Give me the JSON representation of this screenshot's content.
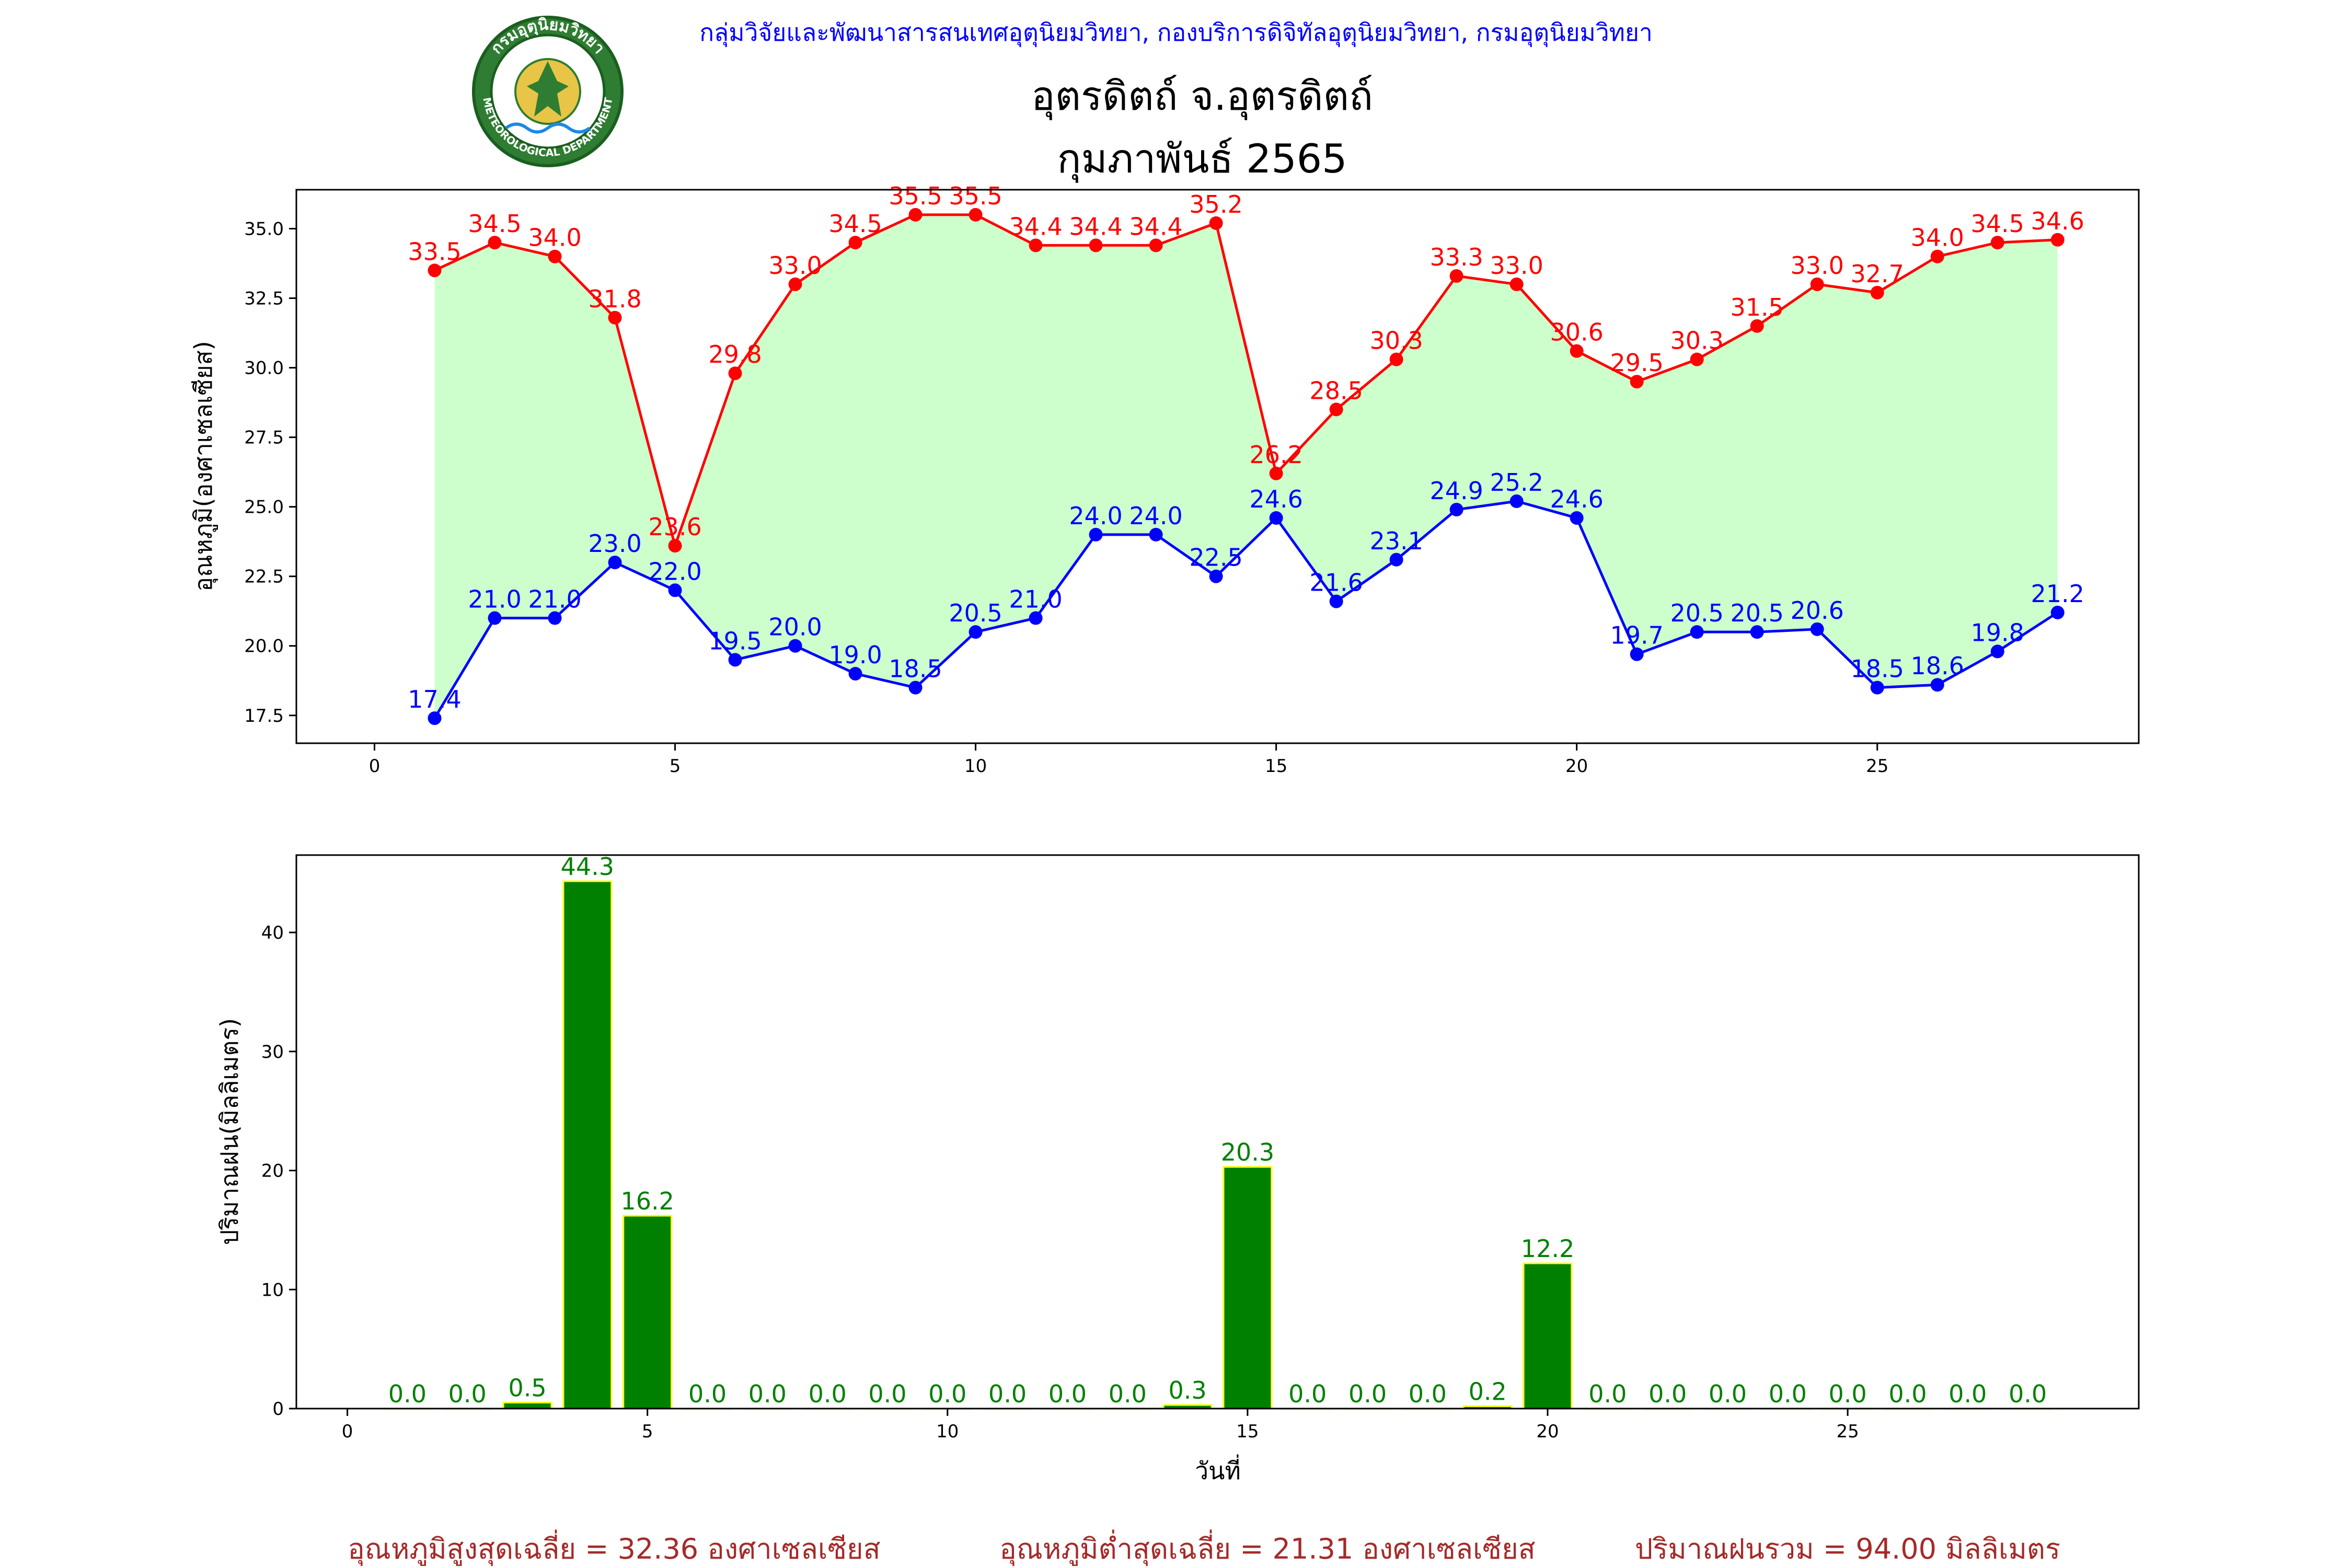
{
  "header": {
    "organization": "กลุ่มวิจัยและพัฒนาสารสนเทศอุตุนิยมวิทยา, กองบริการดิจิทัลอุตุนิยมวิทยา, กรมอุตุนิยมวิทยา",
    "station": "อุตรดิตถ์ จ.อุตรดิตถ์",
    "period": "กุมภาพันธ์ 2565",
    "logo": {
      "text_top": "กรมอุตุนิยมวิทยา",
      "text_bottom": "METEOROLOGICAL DEPARTMENT"
    }
  },
  "chart_data": [
    {
      "type": "line",
      "ylabel": "อุณหภูมิ(องศาเซลเซียส)",
      "xlabel": "",
      "xlim": [
        -1.3,
        29.35
      ],
      "ylim": [
        16.5,
        36.4
      ],
      "xticks": [
        0,
        5,
        10,
        15,
        20,
        25
      ],
      "yticks": [
        "17.5",
        "20.0",
        "22.5",
        "25.0",
        "27.5",
        "30.0",
        "32.5",
        "35.0"
      ],
      "fill_between": {
        "color": "#ccffcc"
      },
      "x": [
        1,
        2,
        3,
        4,
        5,
        6,
        7,
        8,
        9,
        10,
        11,
        12,
        13,
        14,
        15,
        16,
        17,
        18,
        19,
        20,
        21,
        22,
        23,
        24,
        25,
        26,
        27,
        28
      ],
      "series": [
        {
          "color": "#ff0000",
          "values": [
            33.5,
            34.5,
            34.0,
            31.8,
            23.6,
            29.8,
            33.0,
            34.5,
            35.5,
            35.5,
            34.4,
            34.4,
            34.4,
            35.2,
            26.2,
            28.5,
            30.3,
            33.3,
            33.0,
            30.6,
            29.5,
            30.3,
            31.5,
            33.0,
            32.7,
            34.0,
            34.5,
            34.6
          ]
        },
        {
          "color": "#0000ff",
          "values": [
            17.4,
            21.0,
            21.0,
            23.0,
            22.0,
            19.5,
            20.0,
            19.0,
            18.5,
            20.5,
            21.0,
            24.0,
            24.0,
            22.5,
            24.6,
            21.6,
            23.1,
            24.9,
            25.2,
            24.6,
            19.7,
            20.5,
            20.5,
            20.6,
            18.5,
            18.6,
            19.8,
            21.2
          ]
        }
      ]
    },
    {
      "type": "bar",
      "ylabel": "ปริมาณฝน(มิลลิเมตร)",
      "xlabel": "วันที่",
      "xlim": [
        -0.85,
        29.85
      ],
      "ylim": [
        0,
        46.5
      ],
      "xticks": [
        0,
        5,
        10,
        15,
        20,
        25
      ],
      "yticks": [
        "0",
        "10",
        "20",
        "30",
        "40"
      ],
      "bar_color": "#008000",
      "edge_color": "#ffff00",
      "label_color": "#008000",
      "categories": [
        1,
        2,
        3,
        4,
        5,
        6,
        7,
        8,
        9,
        10,
        11,
        12,
        13,
        14,
        15,
        16,
        17,
        18,
        19,
        20,
        21,
        22,
        23,
        24,
        25,
        26,
        27,
        28
      ],
      "values": [
        0.0,
        0.0,
        0.5,
        44.3,
        16.2,
        0.0,
        0.0,
        0.0,
        0.0,
        0.0,
        0.0,
        0.0,
        0.0,
        0.3,
        20.3,
        0.0,
        0.0,
        0.0,
        0.2,
        12.2,
        0.0,
        0.0,
        0.0,
        0.0,
        0.0,
        0.0,
        0.0,
        0.0
      ]
    }
  ],
  "summary": {
    "avg_max": "อุณหภูมิสูงสุดเฉลี่ย = 32.36 องศาเซลเซียส",
    "avg_min": "อุณหภูมิต่ำสุดเฉลี่ย = 21.31 องศาเซลเซียส",
    "total_rain": "ปริมาณฝนรวม = 94.00 มิลลิเมตร"
  }
}
